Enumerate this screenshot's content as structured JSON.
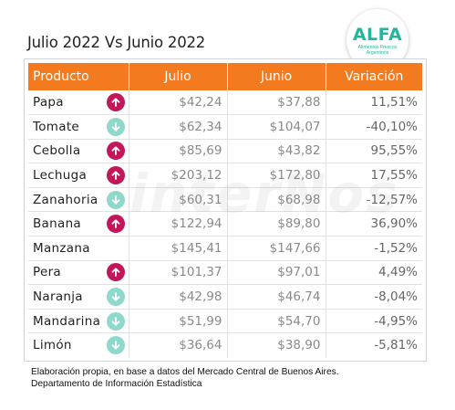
{
  "title": "Julio 2022 Vs Junio 2022",
  "logo": {
    "word": "ALFA",
    "subtitle": "Alimentos Frescos Argentinos"
  },
  "watermark": "interNos",
  "table": {
    "headers": [
      "Producto",
      "Julio",
      "Junio",
      "Variación"
    ],
    "rows": [
      {
        "producto": "Papa",
        "julio": "$42,24",
        "junio": "$37,88",
        "variacion": "11,51%",
        "trend": "up"
      },
      {
        "producto": "Tomate",
        "julio": "$62,34",
        "junio": "$104,07",
        "variacion": "-40,10%",
        "trend": "down"
      },
      {
        "producto": "Cebolla",
        "julio": "$85,69",
        "junio": "$43,82",
        "variacion": "95,55%",
        "trend": "up"
      },
      {
        "producto": "Lechuga",
        "julio": "$203,12",
        "junio": "$172,80",
        "variacion": "17,55%",
        "trend": "up"
      },
      {
        "producto": "Zanahoria",
        "julio": "$60,31",
        "junio": "$68,98",
        "variacion": "-12,57%",
        "trend": "down"
      },
      {
        "producto": "Banana",
        "julio": "$122,94",
        "junio": "$89,80",
        "variacion": "36,90%",
        "trend": "up"
      },
      {
        "producto": "Manzana",
        "julio": "$145,41",
        "junio": "$147,66",
        "variacion": "-1,52%",
        "trend": "none"
      },
      {
        "producto": "Pera",
        "julio": "$101,37",
        "junio": "$97,01",
        "variacion": "4,49%",
        "trend": "up"
      },
      {
        "producto": "Naranja",
        "julio": "$42,98",
        "junio": "$46,74",
        "variacion": "-8,04%",
        "trend": "down"
      },
      {
        "producto": "Mandarina",
        "julio": "$51,99",
        "junio": "$54,70",
        "variacion": "-4,95%",
        "trend": "down"
      },
      {
        "producto": "Limón",
        "julio": "$36,64",
        "junio": "$38,90",
        "variacion": "-5,81%",
        "trend": "down"
      }
    ]
  },
  "footer": {
    "line1": "Elaboración propia, en base a datos del Mercado Central de Buenos Aires.",
    "line2": "Departamento de Información Estadística"
  },
  "colors": {
    "header": "#f47a20",
    "arrow_up": "#c2185b",
    "arrow_down": "#8fd8cb",
    "logo": "#1fb89c"
  }
}
